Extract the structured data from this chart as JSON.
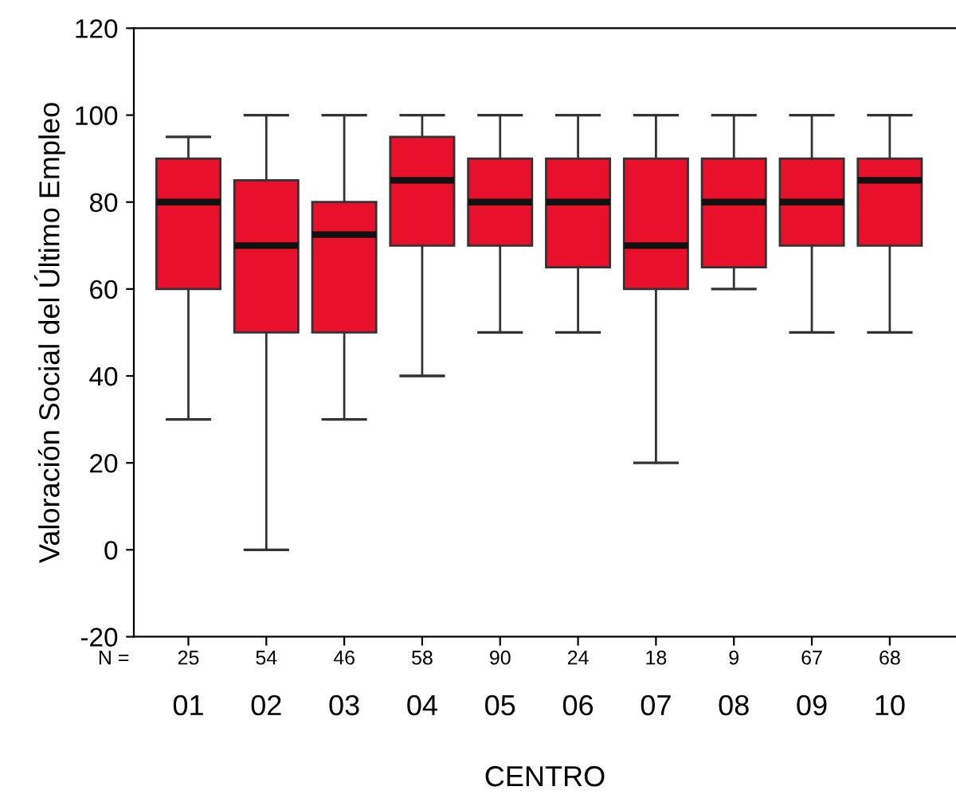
{
  "chart_data": {
    "type": "box",
    "xlabel": "CENTRO",
    "ylabel": "Valoración Social del Último Empleo",
    "categories": [
      "01",
      "02",
      "03",
      "04",
      "05",
      "06",
      "07",
      "08",
      "09",
      "10"
    ],
    "color": "#e8102a",
    "boxes": [
      {
        "low": 30,
        "q1": 60,
        "median": 80,
        "q3": 90,
        "high": 95
      },
      {
        "low": 0,
        "q1": 50,
        "median": 70,
        "q3": 85,
        "high": 100
      },
      {
        "low": 30,
        "q1": 50,
        "median": 72.5,
        "q3": 80,
        "high": 100
      },
      {
        "low": 40,
        "q1": 70,
        "median": 85,
        "q3": 95,
        "high": 100
      },
      {
        "low": 50,
        "q1": 70,
        "median": 80,
        "q3": 90,
        "high": 100
      },
      {
        "low": 50,
        "q1": 65,
        "median": 80,
        "q3": 90,
        "high": 100
      },
      {
        "low": 20,
        "q1": 60,
        "median": 70,
        "q3": 90,
        "high": 100
      },
      {
        "low": 60,
        "q1": 65,
        "median": 80,
        "q3": 90,
        "high": 100
      },
      {
        "low": 50,
        "q1": 70,
        "median": 80,
        "q3": 90,
        "high": 100
      },
      {
        "low": 50,
        "q1": 70,
        "median": 85,
        "q3": 90,
        "high": 100
      }
    ],
    "ylim": [
      -20,
      120
    ],
    "yticks": [
      -20,
      0,
      20,
      40,
      60,
      80,
      100,
      120
    ],
    "grid": false,
    "annotations": [
      "N =",
      "25",
      "54",
      "46",
      "58",
      "90",
      "24",
      "18",
      "9",
      "67",
      "68"
    ]
  }
}
